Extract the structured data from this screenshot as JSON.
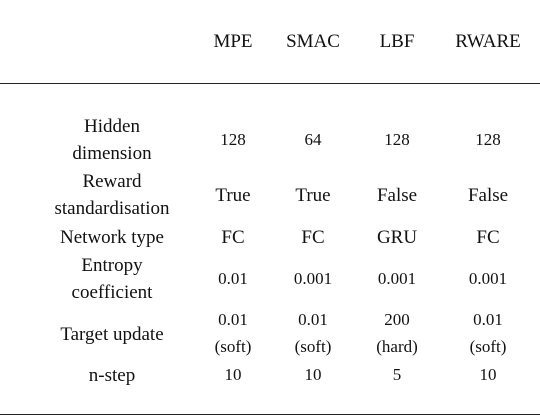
{
  "table": {
    "columns": [
      "MPE",
      "SMAC",
      "LBF",
      "RWARE"
    ],
    "rows": [
      {
        "label": [
          "Hidden",
          "dimension"
        ],
        "values": [
          [
            "128"
          ],
          [
            "64"
          ],
          [
            "128"
          ],
          [
            "128"
          ]
        ]
      },
      {
        "label": [
          "Reward",
          "standardisation"
        ],
        "values": [
          [
            "True"
          ],
          [
            "True"
          ],
          [
            "False"
          ],
          [
            "False"
          ]
        ]
      },
      {
        "label": [
          "Network type"
        ],
        "values": [
          [
            "FC"
          ],
          [
            "FC"
          ],
          [
            "GRU"
          ],
          [
            "FC"
          ]
        ]
      },
      {
        "label": [
          "Entropy",
          "coefficient"
        ],
        "values": [
          [
            "0.01"
          ],
          [
            "0.001"
          ],
          [
            "0.001"
          ],
          [
            "0.001"
          ]
        ]
      },
      {
        "label": [
          "Target update"
        ],
        "values": [
          [
            "0.01",
            "(soft)"
          ],
          [
            "0.01",
            "(soft)"
          ],
          [
            "200",
            "(hard)"
          ],
          [
            "0.01",
            "(soft)"
          ]
        ]
      },
      {
        "label": [
          "n-step"
        ],
        "values": [
          [
            "10"
          ],
          [
            "10"
          ],
          [
            "5"
          ],
          [
            "10"
          ]
        ]
      }
    ]
  }
}
